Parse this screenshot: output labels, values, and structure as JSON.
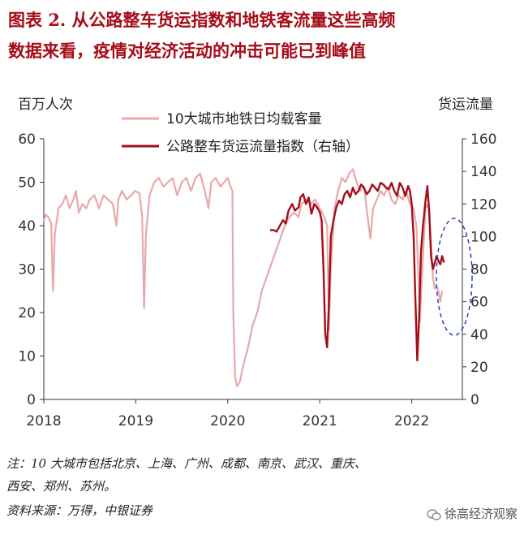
{
  "header": {
    "title_line1": "图表 2.  从公路整车货运指数和地铁客流量这些高频",
    "title_line2": "数据来看，疫情对经济活动的冲击可能已到峰值"
  },
  "notes": {
    "line1": "注：10 大城市包括北京、上海、广州、成都、南京、武汉、重庆、",
    "line2": "西安、郑州、苏州。",
    "source": "资料来源：万得，中银证券"
  },
  "watermark": {
    "text": "徐高经济观察",
    "icon": "wechat-icon"
  },
  "colors": {
    "subway": "#e8a9a9",
    "freight": "#a50d18",
    "highlight": "#1f3ecf",
    "title": "#a50d18"
  },
  "chart_data": {
    "type": "line",
    "title": "",
    "left_unit": "百万人次",
    "right_unit": "货运流量",
    "x_ticks": [
      "2018",
      "2019",
      "2020",
      "2021",
      "2022"
    ],
    "y_left": {
      "min": 0,
      "max": 60,
      "ticks": [
        0,
        10,
        20,
        30,
        40,
        50,
        60
      ]
    },
    "y_right": {
      "min": 0,
      "max": 160,
      "ticks": [
        0,
        20,
        40,
        60,
        80,
        100,
        120,
        140,
        160
      ]
    },
    "legend_position": "top-center",
    "grid": false,
    "annotation": "dashed ellipse around 2022 Q2 recent values",
    "series": [
      {
        "name": "10大城市地铁日均载客量",
        "axis": "left",
        "points": [
          [
            2018.0,
            41
          ],
          [
            2018.02,
            42.5
          ],
          [
            2018.05,
            42
          ],
          [
            2018.08,
            40.5
          ],
          [
            2018.1,
            25
          ],
          [
            2018.12,
            38
          ],
          [
            2018.16,
            44
          ],
          [
            2018.2,
            45
          ],
          [
            2018.24,
            47
          ],
          [
            2018.28,
            44
          ],
          [
            2018.32,
            46
          ],
          [
            2018.35,
            48
          ],
          [
            2018.38,
            43
          ],
          [
            2018.42,
            45
          ],
          [
            2018.46,
            44
          ],
          [
            2018.5,
            46
          ],
          [
            2018.55,
            47
          ],
          [
            2018.6,
            44
          ],
          [
            2018.65,
            47
          ],
          [
            2018.7,
            46
          ],
          [
            2018.75,
            45
          ],
          [
            2018.79,
            40
          ],
          [
            2018.81,
            46
          ],
          [
            2018.85,
            48
          ],
          [
            2018.9,
            46
          ],
          [
            2018.95,
            47
          ],
          [
            2018.99,
            48
          ],
          [
            2019.04,
            47.5
          ],
          [
            2019.07,
            42
          ],
          [
            2019.09,
            21
          ],
          [
            2019.11,
            38
          ],
          [
            2019.15,
            47
          ],
          [
            2019.2,
            50
          ],
          [
            2019.25,
            51
          ],
          [
            2019.3,
            49
          ],
          [
            2019.35,
            50
          ],
          [
            2019.4,
            51
          ],
          [
            2019.45,
            47
          ],
          [
            2019.5,
            50
          ],
          [
            2019.55,
            51
          ],
          [
            2019.6,
            48
          ],
          [
            2019.65,
            51
          ],
          [
            2019.7,
            52
          ],
          [
            2019.75,
            48
          ],
          [
            2019.79,
            44
          ],
          [
            2019.82,
            50
          ],
          [
            2019.87,
            51
          ],
          [
            2019.92,
            49
          ],
          [
            2019.96,
            50
          ],
          [
            2020.0,
            51
          ],
          [
            2020.03,
            49
          ],
          [
            2020.05,
            48
          ],
          [
            2020.06,
            20
          ],
          [
            2020.08,
            5
          ],
          [
            2020.1,
            3
          ],
          [
            2020.13,
            4
          ],
          [
            2020.17,
            8
          ],
          [
            2020.22,
            12
          ],
          [
            2020.27,
            17
          ],
          [
            2020.32,
            20
          ],
          [
            2020.37,
            25
          ],
          [
            2020.42,
            28
          ],
          [
            2020.47,
            31
          ],
          [
            2020.52,
            34
          ],
          [
            2020.57,
            37
          ],
          [
            2020.62,
            40
          ],
          [
            2020.67,
            42
          ],
          [
            2020.72,
            43
          ],
          [
            2020.77,
            42
          ],
          [
            2020.8,
            45
          ],
          [
            2020.85,
            46
          ],
          [
            2020.9,
            45
          ],
          [
            2020.95,
            46
          ],
          [
            2021.0,
            44
          ],
          [
            2021.05,
            42
          ],
          [
            2021.08,
            40
          ],
          [
            2021.1,
            16
          ],
          [
            2021.12,
            30
          ],
          [
            2021.16,
            44
          ],
          [
            2021.2,
            48
          ],
          [
            2021.24,
            51
          ],
          [
            2021.28,
            50
          ],
          [
            2021.32,
            52
          ],
          [
            2021.36,
            53
          ],
          [
            2021.4,
            50
          ],
          [
            2021.44,
            48
          ],
          [
            2021.48,
            49
          ],
          [
            2021.52,
            42
          ],
          [
            2021.55,
            37
          ],
          [
            2021.58,
            44
          ],
          [
            2021.62,
            46
          ],
          [
            2021.66,
            48
          ],
          [
            2021.7,
            47
          ],
          [
            2021.74,
            49
          ],
          [
            2021.78,
            46
          ],
          [
            2021.82,
            45
          ],
          [
            2021.86,
            47
          ],
          [
            2021.9,
            46
          ],
          [
            2021.94,
            48
          ],
          [
            2021.98,
            45
          ],
          [
            2022.02,
            44
          ],
          [
            2022.05,
            40
          ],
          [
            2022.07,
            30
          ],
          [
            2022.09,
            18
          ],
          [
            2022.12,
            32
          ],
          [
            2022.15,
            44
          ],
          [
            2022.18,
            45
          ],
          [
            2022.21,
            36
          ],
          [
            2022.23,
            28
          ],
          [
            2022.25,
            25.5
          ],
          [
            2022.27,
            26
          ],
          [
            2022.29,
            25
          ],
          [
            2022.31,
            22.5
          ],
          [
            2022.33,
            25
          ]
        ]
      },
      {
        "name": "公路整车货运流量指数（右轴）",
        "axis": "right",
        "points": [
          [
            2020.46,
            104
          ],
          [
            2020.5,
            104
          ],
          [
            2020.53,
            103
          ],
          [
            2020.56,
            106
          ],
          [
            2020.6,
            110
          ],
          [
            2020.63,
            108
          ],
          [
            2020.66,
            116
          ],
          [
            2020.7,
            120
          ],
          [
            2020.73,
            116
          ],
          [
            2020.77,
            118
          ],
          [
            2020.79,
            124
          ],
          [
            2020.82,
            126
          ],
          [
            2020.85,
            120
          ],
          [
            2020.88,
            124
          ],
          [
            2020.91,
            114
          ],
          [
            2020.94,
            120
          ],
          [
            2020.97,
            118
          ],
          [
            2021.0,
            115
          ],
          [
            2021.02,
            110
          ],
          [
            2021.04,
            80
          ],
          [
            2021.06,
            40
          ],
          [
            2021.08,
            32
          ],
          [
            2021.1,
            60
          ],
          [
            2021.12,
            100
          ],
          [
            2021.15,
            110
          ],
          [
            2021.18,
            118
          ],
          [
            2021.21,
            122
          ],
          [
            2021.24,
            120
          ],
          [
            2021.27,
            126
          ],
          [
            2021.3,
            128
          ],
          [
            2021.33,
            124
          ],
          [
            2021.36,
            130
          ],
          [
            2021.39,
            126
          ],
          [
            2021.42,
            128
          ],
          [
            2021.45,
            132
          ],
          [
            2021.48,
            130
          ],
          [
            2021.51,
            126
          ],
          [
            2021.54,
            128
          ],
          [
            2021.57,
            132
          ],
          [
            2021.6,
            130
          ],
          [
            2021.63,
            128
          ],
          [
            2021.66,
            133
          ],
          [
            2021.69,
            132
          ],
          [
            2021.72,
            130
          ],
          [
            2021.75,
            129
          ],
          [
            2021.78,
            133
          ],
          [
            2021.81,
            128
          ],
          [
            2021.84,
            125
          ],
          [
            2021.87,
            133
          ],
          [
            2021.9,
            130
          ],
          [
            2021.93,
            125
          ],
          [
            2021.96,
            131
          ],
          [
            2021.98,
            128
          ],
          [
            2022.0,
            120
          ],
          [
            2022.02,
            100
          ],
          [
            2022.04,
            60
          ],
          [
            2022.06,
            24
          ],
          [
            2022.08,
            50
          ],
          [
            2022.1,
            90
          ],
          [
            2022.12,
            105
          ],
          [
            2022.15,
            122
          ],
          [
            2022.17,
            131
          ],
          [
            2022.19,
            115
          ],
          [
            2022.21,
            88
          ],
          [
            2022.23,
            80
          ],
          [
            2022.25,
            84
          ],
          [
            2022.27,
            88
          ],
          [
            2022.29,
            85
          ],
          [
            2022.31,
            83
          ],
          [
            2022.33,
            88
          ],
          [
            2022.35,
            84
          ]
        ]
      }
    ]
  }
}
